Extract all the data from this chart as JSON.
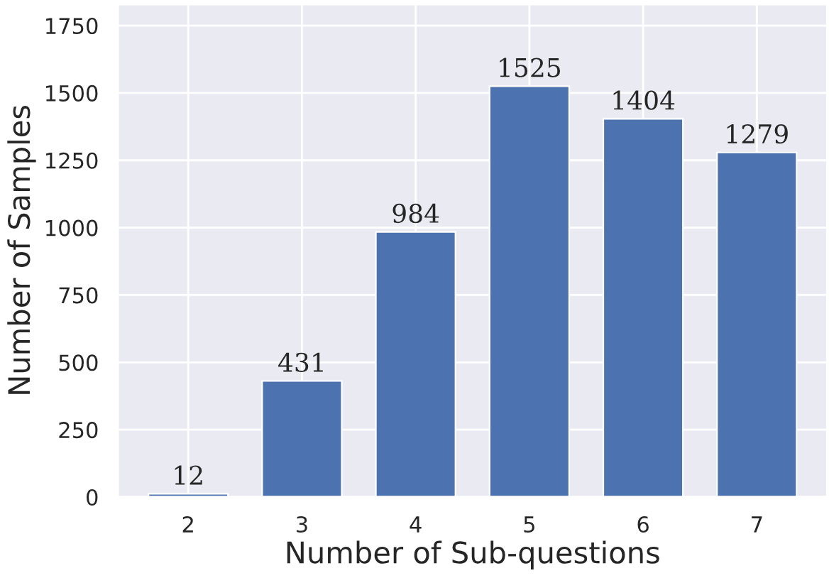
{
  "chart_data": {
    "type": "bar",
    "xlabel": "Number of Sub-questions",
    "ylabel": "Number of Samples",
    "categories": [
      "2",
      "3",
      "4",
      "5",
      "6",
      "7"
    ],
    "values": [
      12,
      431,
      984,
      1525,
      1404,
      1279
    ],
    "color": "#4c72b0",
    "ylim": [
      0,
      1830
    ],
    "yticks": [
      0,
      250,
      500,
      750,
      1000,
      1250,
      1500,
      1750
    ],
    "grid": true,
    "data_labels": true
  }
}
